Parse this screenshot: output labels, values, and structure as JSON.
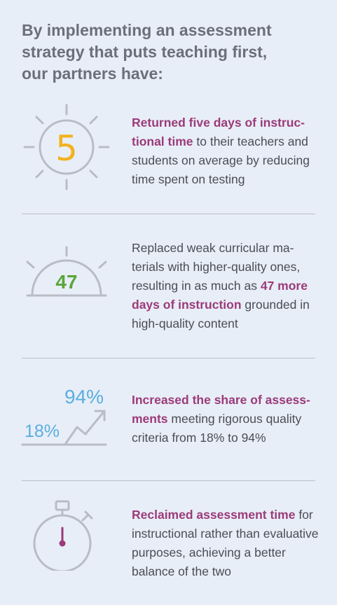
{
  "headline": {
    "line1": "By implementing an assessment",
    "line2": "strategy that puts teaching first,",
    "line3": "our partners have:"
  },
  "items": [
    {
      "icon": "sun-icon",
      "icon_value": "5",
      "highlight_1": "Returned five days of instruc-tional time",
      "text_1": " to their teachers and students on average by reducing time spent on testing"
    },
    {
      "icon": "rising-sun-icon",
      "icon_value": "47",
      "text_1": "Replaced weak curricular ma-terials with higher-quality ones, resulting in as much as ",
      "highlight_1": "47 more days of instruction",
      "text_2": " grounded in high-quality content"
    },
    {
      "icon": "trend-arrow-icon",
      "icon_value_low": "18%",
      "icon_value_high": "94%",
      "highlight_1": "Increased the share of assess-ments",
      "text_1": " meeting rigorous quality criteria from 18% to 94%"
    },
    {
      "icon": "stopwatch-icon",
      "highlight_1": "Reclaimed assessment time",
      "text_1": " for instructional rather than evaluative purposes, achieving a better balance of the two"
    }
  ],
  "colors": {
    "background": "#e8eef7",
    "headline": "#6b6f7a",
    "highlight": "#9b3b7a",
    "icon_gray": "#b7bcc6",
    "sun_number": "#f2b21c",
    "green_number": "#5aa63c",
    "blue_number": "#5aaee0",
    "stopwatch_hand": "#9b3b7a"
  }
}
